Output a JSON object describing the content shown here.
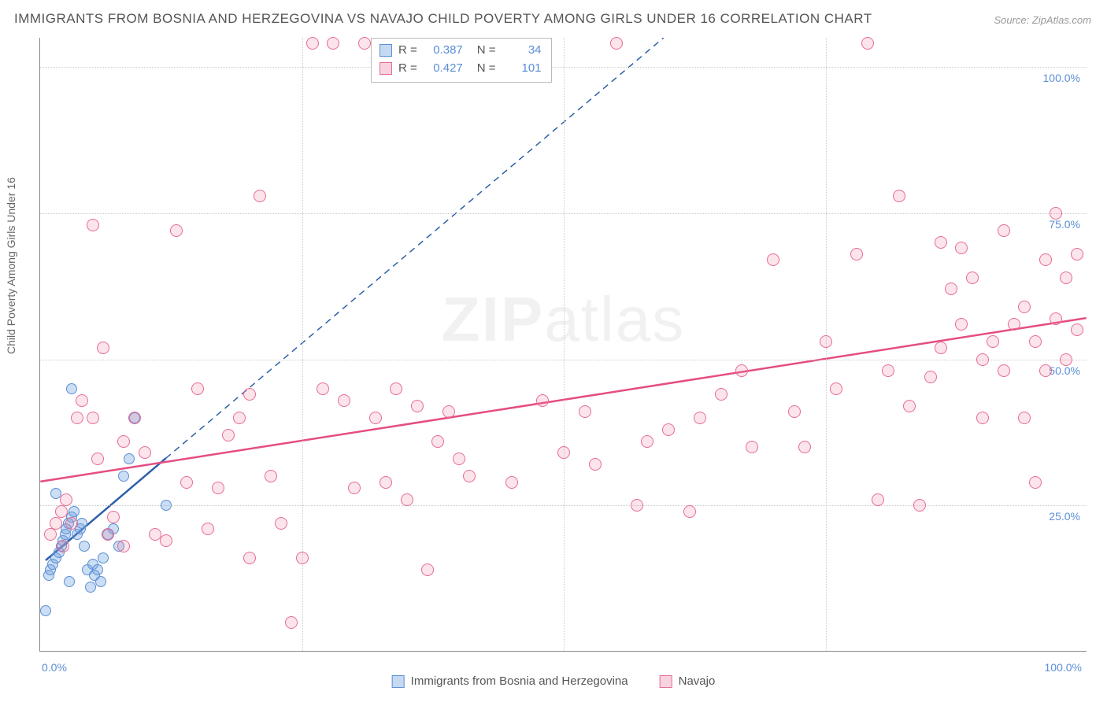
{
  "title": "IMMIGRANTS FROM BOSNIA AND HERZEGOVINA VS NAVAJO CHILD POVERTY AMONG GIRLS UNDER 16 CORRELATION CHART",
  "source_prefix": "Source: ",
  "source": "ZipAtlas.com",
  "y_axis_label": "Child Poverty Among Girls Under 16",
  "watermark_bold": "ZIP",
  "watermark_rest": "atlas",
  "chart": {
    "type": "scatter",
    "xlim": [
      0,
      100
    ],
    "ylim": [
      0,
      105
    ],
    "x_ticks": [
      0,
      25,
      50,
      75,
      100
    ],
    "y_ticks": [
      25,
      50,
      75,
      100
    ],
    "x_tick_labels": [
      "0.0%",
      "",
      "",
      "",
      "100.0%"
    ],
    "y_tick_labels": [
      "25.0%",
      "50.0%",
      "75.0%",
      "100.0%"
    ],
    "grid_color": "#cccccc",
    "background_color": "#ffffff",
    "series": [
      {
        "name": "Immigrants from Bosnia and Herzegovina",
        "color_fill": "rgba(110,160,220,0.35)",
        "color_stroke": "#5b8fd6",
        "marker_size": 14,
        "R": "0.387",
        "N": "34",
        "trend": {
          "x1": 0.5,
          "y1": 15.5,
          "x2": 12,
          "y2": 33,
          "x2_ext": 88,
          "y2_ext": 148,
          "color": "#2d5fa8",
          "width": 2.5,
          "dash_after_x": 12
        },
        "points": [
          [
            0.5,
            7
          ],
          [
            0.8,
            13
          ],
          [
            1,
            14
          ],
          [
            1.2,
            15
          ],
          [
            1.5,
            16
          ],
          [
            1.8,
            17
          ],
          [
            2,
            18
          ],
          [
            2.2,
            19
          ],
          [
            2.4,
            20
          ],
          [
            2.5,
            21
          ],
          [
            2.7,
            22
          ],
          [
            3,
            23
          ],
          [
            3.2,
            24
          ],
          [
            3.5,
            20
          ],
          [
            3.8,
            21
          ],
          [
            4,
            22
          ],
          [
            4.2,
            18
          ],
          [
            4.5,
            14
          ],
          [
            5,
            15
          ],
          [
            5.2,
            13
          ],
          [
            5.5,
            14
          ],
          [
            6,
            16
          ],
          [
            6.5,
            20
          ],
          [
            7,
            21
          ],
          [
            7.5,
            18
          ],
          [
            8,
            30
          ],
          [
            8.5,
            33
          ],
          [
            9,
            40
          ],
          [
            3,
            45
          ],
          [
            1.5,
            27
          ],
          [
            2.8,
            12
          ],
          [
            4.8,
            11
          ],
          [
            5.8,
            12
          ],
          [
            12,
            25
          ]
        ]
      },
      {
        "name": "Navajo",
        "color_fill": "rgba(235,130,160,0.22)",
        "color_stroke": "#e76b96",
        "marker_size": 16,
        "R": "0.427",
        "N": "101",
        "trend": {
          "x1": 0,
          "y1": 29,
          "x2": 100,
          "y2": 57,
          "color": "#e54d82",
          "width": 2.5
        },
        "points": [
          [
            1,
            20
          ],
          [
            1.5,
            22
          ],
          [
            2,
            24
          ],
          [
            2.2,
            18
          ],
          [
            2.5,
            26
          ],
          [
            3,
            22
          ],
          [
            3.5,
            40
          ],
          [
            4,
            43
          ],
          [
            5,
            40
          ],
          [
            5,
            73
          ],
          [
            5.5,
            33
          ],
          [
            6,
            52
          ],
          [
            6.5,
            20
          ],
          [
            7,
            23
          ],
          [
            8,
            18
          ],
          [
            8,
            36
          ],
          [
            9,
            40
          ],
          [
            10,
            34
          ],
          [
            11,
            20
          ],
          [
            12,
            19
          ],
          [
            13,
            72
          ],
          [
            14,
            29
          ],
          [
            15,
            45
          ],
          [
            16,
            21
          ],
          [
            17,
            28
          ],
          [
            18,
            37
          ],
          [
            19,
            40
          ],
          [
            20,
            16
          ],
          [
            20,
            44
          ],
          [
            21,
            78
          ],
          [
            22,
            30
          ],
          [
            23,
            22
          ],
          [
            24,
            5
          ],
          [
            25,
            16
          ],
          [
            26,
            104
          ],
          [
            27,
            45
          ],
          [
            28,
            104
          ],
          [
            29,
            43
          ],
          [
            30,
            28
          ],
          [
            31,
            104
          ],
          [
            32,
            40
          ],
          [
            33,
            29
          ],
          [
            34,
            45
          ],
          [
            35,
            26
          ],
          [
            36,
            42
          ],
          [
            37,
            14
          ],
          [
            38,
            36
          ],
          [
            39,
            41
          ],
          [
            40,
            33
          ],
          [
            41,
            30
          ],
          [
            45,
            29
          ],
          [
            48,
            43
          ],
          [
            50,
            34
          ],
          [
            52,
            41
          ],
          [
            53,
            32
          ],
          [
            55,
            104
          ],
          [
            57,
            25
          ],
          [
            58,
            36
          ],
          [
            60,
            38
          ],
          [
            62,
            24
          ],
          [
            63,
            40
          ],
          [
            65,
            44
          ],
          [
            67,
            48
          ],
          [
            68,
            35
          ],
          [
            70,
            67
          ],
          [
            72,
            41
          ],
          [
            73,
            35
          ],
          [
            75,
            53
          ],
          [
            76,
            45
          ],
          [
            78,
            68
          ],
          [
            79,
            104
          ],
          [
            80,
            26
          ],
          [
            81,
            48
          ],
          [
            82,
            78
          ],
          [
            83,
            42
          ],
          [
            84,
            25
          ],
          [
            85,
            47
          ],
          [
            86,
            70
          ],
          [
            87,
            62
          ],
          [
            88,
            56
          ],
          [
            89,
            64
          ],
          [
            90,
            50
          ],
          [
            91,
            53
          ],
          [
            92,
            48
          ],
          [
            92,
            72
          ],
          [
            93,
            56
          ],
          [
            94,
            59
          ],
          [
            94,
            40
          ],
          [
            95,
            53
          ],
          [
            96,
            67
          ],
          [
            96,
            48
          ],
          [
            97,
            57
          ],
          [
            97,
            75
          ],
          [
            98,
            64
          ],
          [
            98,
            50
          ],
          [
            99,
            68
          ],
          [
            99,
            55
          ],
          [
            95,
            29
          ],
          [
            90,
            40
          ],
          [
            88,
            69
          ],
          [
            86,
            52
          ]
        ]
      }
    ]
  },
  "stats_labels": {
    "R": "R =",
    "N": "N ="
  },
  "legend_series": [
    {
      "label": "Immigrants from Bosnia and Herzegovina",
      "swatch": "blue"
    },
    {
      "label": "Navajo",
      "swatch": "pink"
    }
  ]
}
